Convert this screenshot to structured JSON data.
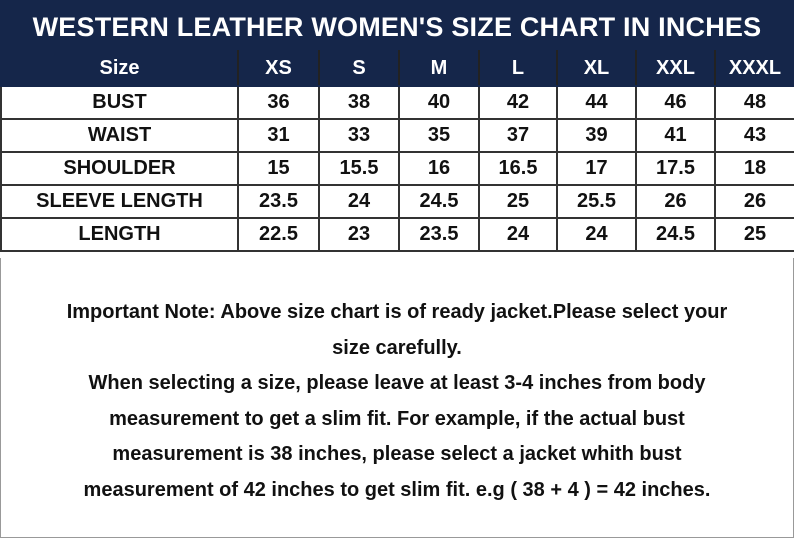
{
  "title": "WESTERN LEATHER WOMEN'S SIZE CHART IN INCHES",
  "chart_data": {
    "type": "table",
    "title": "WESTERN LEATHER WOMEN'S SIZE CHART IN INCHES",
    "columns": [
      "Size",
      "XS",
      "S",
      "M",
      "L",
      "XL",
      "XXL",
      "XXXL"
    ],
    "rows": [
      [
        "BUST",
        "36",
        "38",
        "40",
        "42",
        "44",
        "46",
        "48"
      ],
      [
        "WAIST",
        "31",
        "33",
        "35",
        "37",
        "39",
        "41",
        "43"
      ],
      [
        "SHOULDER",
        "15",
        "15.5",
        "16",
        "16.5",
        "17",
        "17.5",
        "18"
      ],
      [
        "SLEEVE LENGTH",
        "23.5",
        "24",
        "24.5",
        "25",
        "25.5",
        "26",
        "26"
      ],
      [
        "LENGTH",
        "22.5",
        "23",
        "23.5",
        "24",
        "24",
        "24.5",
        "25"
      ]
    ]
  },
  "colors": {
    "header_bg": "#15264a",
    "header_text": "#ffffff"
  },
  "note": {
    "lines": [
      "Important Note: Above size chart is of ready jacket.Please select your",
      "size carefully.",
      "When selecting a size, please leave at least 3-4 inches from body",
      "measurement to get a slim fit. For example, if the actual bust",
      "measurement is 38 inches, please select a jacket whith bust",
      "measurement of 42 inches to get slim fit. e.g ( 38 + 4 ) = 42 inches."
    ]
  }
}
